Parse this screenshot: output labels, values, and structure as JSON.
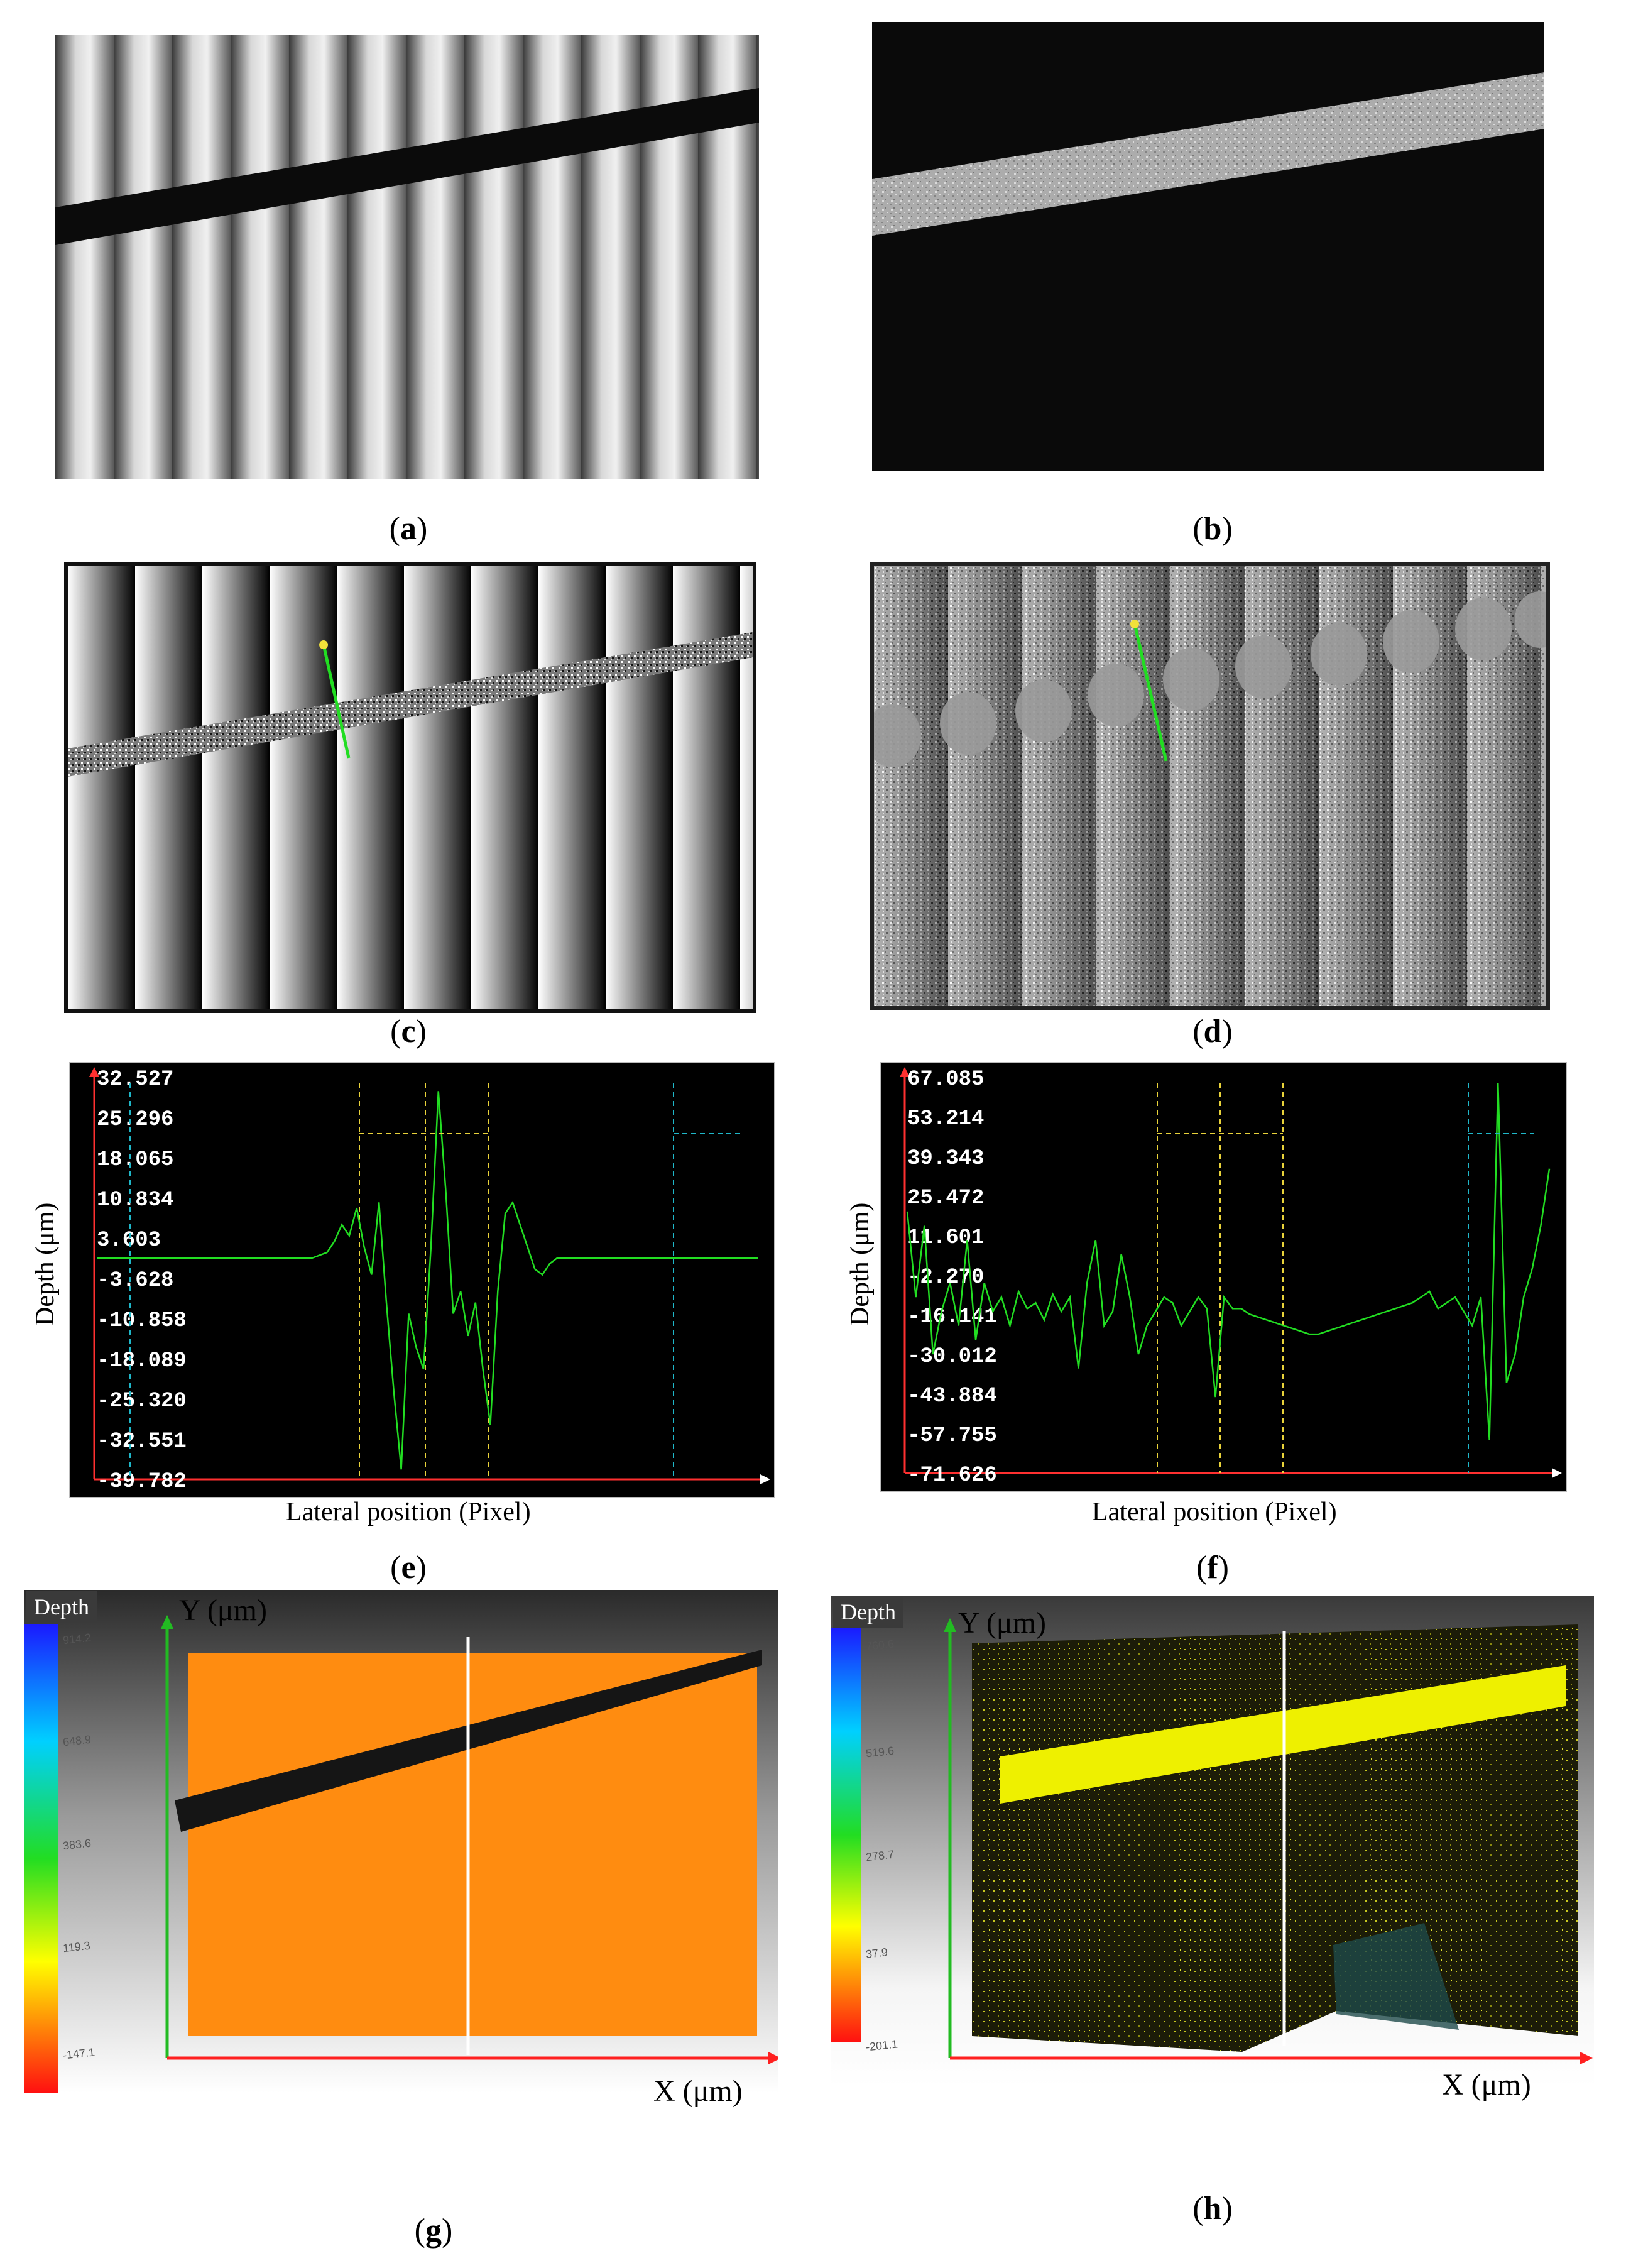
{
  "captions": {
    "a": "a",
    "b": "b",
    "c": "c",
    "d": "d",
    "e": "e",
    "f": "f",
    "g": "g",
    "h": "h"
  },
  "plot_e": {
    "xlabel": "Lateral position (Pixel)",
    "ylabel": "Depth (μm)",
    "ticks": [
      "32.527",
      "25.296",
      "18.065",
      "10.834",
      "3.603",
      "-3.628",
      "-10.858",
      "-18.089",
      "-25.320",
      "-32.551",
      "-39.782"
    ]
  },
  "plot_f": {
    "xlabel": "Lateral position (Pixel)",
    "ylabel": "Depth (μm)",
    "ticks": [
      "67.085",
      "53.214",
      "39.343",
      "25.472",
      "11.601",
      "-2.270",
      "-16.141",
      "-30.012",
      "-43.884",
      "-57.755",
      "-71.626"
    ]
  },
  "view_g": {
    "legend_title": "Depth",
    "legend_ticks": [
      "914.2",
      "648.9",
      "383.6",
      "119.3",
      "-147.1"
    ],
    "y_axis": "Y (μm)",
    "x_axis": "X (μm)"
  },
  "view_h": {
    "legend_title": "Depth",
    "legend_ticks": [
      "760.6",
      "519.6",
      "278.7",
      "37.9",
      "-201.1"
    ],
    "y_axis": "Y (μm)",
    "x_axis": "X (μm)"
  },
  "colors": {
    "trace": "#22dd22",
    "marker_yellow": "#e8d23a",
    "marker_cyan": "#1fb7c9",
    "orange_surface": "#ff8c10",
    "yellow_band": "#eef000"
  },
  "chart_data": [
    {
      "type": "line",
      "panel": "e",
      "xlabel": "Lateral position (Pixel)",
      "ylabel": "Depth (μm)",
      "ylim": [
        -39.782,
        32.527
      ],
      "series": [
        {
          "values": [
            0,
            0,
            0,
            0,
            0,
            0,
            0,
            0,
            0,
            0,
            0,
            0,
            0,
            0,
            0,
            0,
            0,
            0,
            0,
            0,
            0,
            0,
            0,
            0,
            0,
            0,
            0,
            0,
            0,
            0,
            0.5,
            1,
            3,
            6,
            4,
            9,
            2,
            -3,
            10,
            -8,
            -24,
            -38,
            -10,
            -16,
            -20,
            2,
            30,
            12,
            -10,
            -6,
            -14,
            -8,
            -20,
            -30,
            -6,
            8,
            10,
            6,
            2,
            -2,
            -3,
            -1,
            0,
            0,
            0,
            0,
            0,
            0,
            0,
            0,
            0,
            0,
            0,
            0,
            0,
            0,
            0,
            0,
            0,
            0,
            0,
            0,
            0,
            0,
            0,
            0,
            0,
            0,
            0,
            0
          ]
        }
      ]
    },
    {
      "type": "line",
      "panel": "f",
      "xlabel": "Lateral position (Pixel)",
      "ylabel": "Depth (μm)",
      "ylim": [
        -71.626,
        67.085
      ],
      "series": [
        {
          "values": [
            20,
            -10,
            15,
            -30,
            -15,
            -5,
            -20,
            10,
            -25,
            -5,
            -15,
            -10,
            -20,
            -8,
            -14,
            -12,
            -18,
            -9,
            -15,
            -10,
            -35,
            -5,
            10,
            -20,
            -15,
            5,
            -10,
            -30,
            -20,
            -15,
            -10,
            -12,
            -20,
            -15,
            -10,
            -14,
            -45,
            -10,
            -14,
            -14,
            -16,
            -17,
            -18,
            -19,
            -20,
            -21,
            -22,
            -23,
            -23,
            -22,
            -21,
            -20,
            -19,
            -18,
            -17,
            -16,
            -15,
            -14,
            -13,
            -12,
            -10,
            -8,
            -14,
            -12,
            -10,
            -15,
            -20,
            -10,
            -60,
            65,
            -40,
            -30,
            -10,
            0,
            15,
            35
          ]
        }
      ]
    }
  ]
}
